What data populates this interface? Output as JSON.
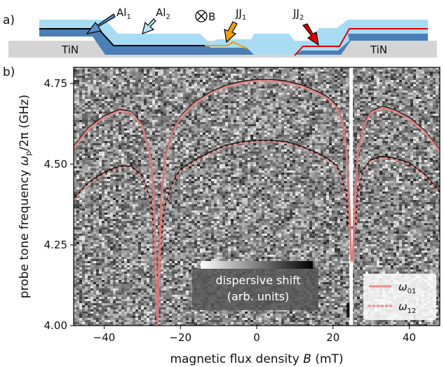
{
  "panel_a": {
    "label": "a)",
    "labels": {
      "tin_left": "TiN",
      "tin_right": "TiN",
      "al1_base": "Al",
      "al1_sub": "1",
      "al2_base": "Al",
      "al2_sub": "2",
      "b_field": "B",
      "jj1_base": "JJ",
      "jj1_sub": "1",
      "jj2_base": "JJ",
      "jj2_sub": "2"
    },
    "colors": {
      "tin": "#d4d4d4",
      "substrate_dark": "#4a7fb7",
      "substrate_light": "#a9dcf3",
      "al1_arrow": "#5b8fc8",
      "al2_arrow": "#b7e4f7",
      "jj1_arrow": "#f0a000",
      "jj2_arrow": "#e00000",
      "red_line": "#e00000",
      "black_line": "#000000"
    }
  },
  "panel_b": {
    "label": "b)",
    "legend": {
      "w01_base": "ω",
      "w01_sub": "01",
      "w12_base": "ω",
      "w12_sub": "12"
    },
    "colorbar_line1": "dispersive shift",
    "colorbar_line2": "(arb. units)",
    "colors": {
      "fit": "#f08a8a",
      "data_dark": "#222222"
    }
  },
  "chart_data": {
    "type": "heatmap",
    "title": "",
    "xlabel_text": "magnetic flux density ",
    "xlabel_var": "B",
    "xlabel_unit": " (mT)",
    "ylabel_text": "probe tone frequency ",
    "ylabel_var": "ω",
    "ylabel_sub": "p",
    "ylabel_tail": "/2π (GHz)",
    "xlim": [
      -48,
      48
    ],
    "ylim": [
      4.0,
      4.8
    ],
    "xticks": [
      -40,
      -20,
      0,
      20,
      40
    ],
    "yticks": [
      4.0,
      4.25,
      4.5,
      4.75
    ],
    "xtick_labels": [
      "−40",
      "−20",
      "0",
      "20",
      "40"
    ],
    "ytick_labels": [
      "4.00",
      "4.25",
      "4.50",
      "4.75"
    ],
    "series": [
      {
        "name": "ω01",
        "style": "solid",
        "x": [
          -48,
          -44,
          -40,
          -36,
          -33,
          -30,
          -28,
          -27,
          -26.5,
          -26,
          -25.5,
          -25,
          -24,
          -22,
          -20,
          -16,
          -12,
          -8,
          -4,
          0,
          4,
          8,
          12,
          16,
          19,
          21,
          22.5,
          23.5,
          24.2,
          24.8,
          25.2,
          25.8,
          26.5,
          28,
          30,
          33,
          36,
          40,
          44,
          48
        ],
        "y": [
          4.55,
          4.61,
          4.645,
          4.665,
          4.66,
          4.62,
          4.53,
          4.42,
          4.2,
          4.0,
          4.2,
          4.4,
          4.52,
          4.6,
          4.645,
          4.69,
          4.72,
          4.74,
          4.752,
          4.758,
          4.758,
          4.752,
          4.74,
          4.72,
          4.7,
          4.675,
          4.63,
          4.55,
          4.4,
          4.2,
          4.2,
          4.4,
          4.53,
          4.62,
          4.66,
          4.675,
          4.665,
          4.64,
          4.6,
          4.54
        ]
      },
      {
        "name": "ω12",
        "style": "dotted",
        "x": [
          -48,
          -44,
          -40,
          -36,
          -33,
          -30,
          -28,
          -27,
          -26.5,
          -25.5,
          -25,
          -24,
          -22,
          -20,
          -16,
          -12,
          -8,
          -4,
          0,
          4,
          8,
          12,
          16,
          19,
          21,
          22.5,
          23.5,
          24.2,
          25.8,
          26.5,
          28,
          30,
          33,
          36,
          40,
          44,
          48
        ],
        "y": [
          4.39,
          4.44,
          4.47,
          4.49,
          4.49,
          4.46,
          4.39,
          4.3,
          4.15,
          4.15,
          4.28,
          4.37,
          4.44,
          4.48,
          4.51,
          4.535,
          4.555,
          4.565,
          4.57,
          4.57,
          4.565,
          4.55,
          4.53,
          4.51,
          4.49,
          4.45,
          4.4,
          4.3,
          4.3,
          4.41,
          4.48,
          4.51,
          4.52,
          4.515,
          4.5,
          4.465,
          4.41
        ]
      }
    ],
    "grid": false,
    "legend_position": "bottom-right",
    "colormap": "grayscale"
  }
}
